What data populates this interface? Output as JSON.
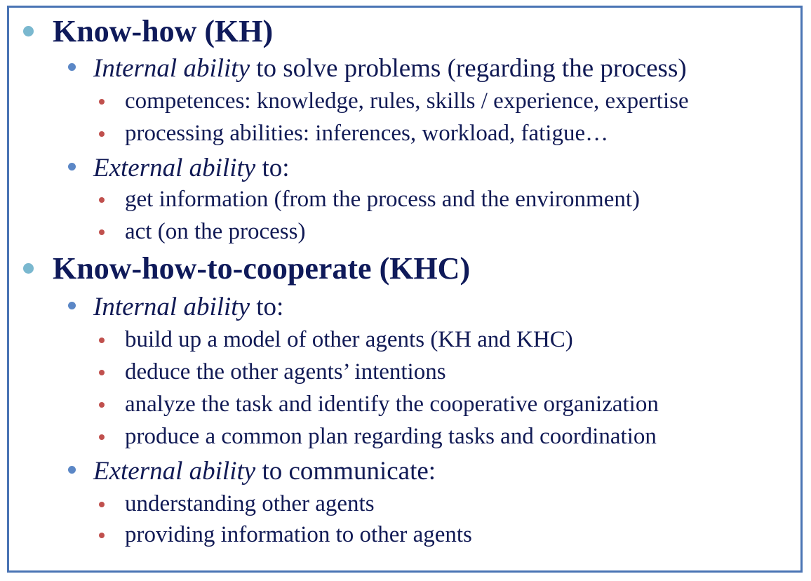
{
  "sections": [
    {
      "heading": "Know-how (KH)",
      "items": [
        {
          "italic": "Internal ability",
          "rest": " to solve problems (regarding the process)",
          "subitems": [
            "competences: knowledge, rules, skills / experience, expertise",
            "processing abilities: inferences, workload, fatigue…"
          ]
        },
        {
          "italic": "External ability",
          "rest": " to:",
          "subitems": [
            "get information (from the process and the environment)",
            "act (on the process)"
          ]
        }
      ]
    },
    {
      "heading": "Know-how-to-cooperate (KHC)",
      "items": [
        {
          "italic": "Internal ability",
          "rest": " to:",
          "subitems": [
            "build up a model of other agents (KH and KHC)",
            "deduce the other agents’ intentions",
            "analyze the task and identify the cooperative organization",
            "produce a common plan regarding tasks and coordination"
          ]
        },
        {
          "italic": "External ability",
          "rest": " to communicate:",
          "subitems": [
            "understanding other agents",
            "providing information to other agents"
          ]
        }
      ]
    }
  ],
  "colors": {
    "frame_border": "#4a74b4",
    "level1_bullet": "#7ab8cf",
    "level2_bullet": "#5b87c6",
    "level3_bullet": "#c0504d",
    "text": "#111a55"
  }
}
